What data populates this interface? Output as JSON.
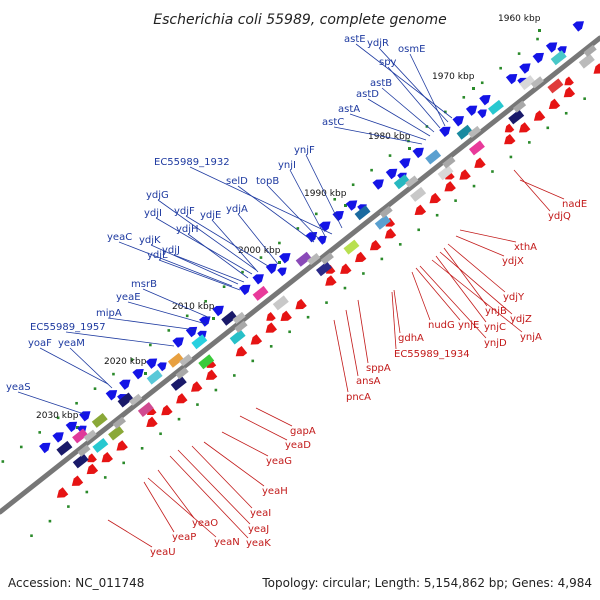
{
  "title": "Escherichia coli 55989, complete genome",
  "footer": {
    "accession": "Accession: NC_011748",
    "summary": "Topology: circular; Length: 5,154,862 bp; Genes: 4,984"
  },
  "colors": {
    "backbone": "#888888",
    "top_label": "#1e3aa0",
    "bottom_label": "#c21a1a",
    "top_feature": "#1414e6",
    "bottom_feature": "#e61414",
    "tick": "#2a8a2a"
  },
  "ticks": [
    "1960 kbp",
    "1970 kbp",
    "1980 kbp",
    "1990 kbp",
    "2000 kbp",
    "2010 kbp",
    "2020 kbp",
    "2030 kbp"
  ],
  "top_genes": [
    "astE",
    "ydjR",
    "osmE",
    "spy",
    "astB",
    "astD",
    "astA",
    "astC",
    "ynjF",
    "EC55989_1932",
    "ynjI",
    "selD",
    "topB",
    "ydjG",
    "ydjF",
    "ydjI",
    "ydjE",
    "ydjA",
    "ydjH",
    "yeaC",
    "ydjK",
    "ydjJ",
    "ydjL",
    "msrB",
    "yeaE",
    "mipA",
    "EC55989_1957",
    "yoaF",
    "yeaM",
    "yeaS"
  ],
  "bottom_genes": [
    "nadE",
    "ydjQ",
    "xthA",
    "ydjX",
    "ydjY",
    "ynjB",
    "ydjZ",
    "ynjC",
    "ynjA",
    "nudG",
    "ynjE",
    "ynjD",
    "gdhA",
    "EC55989_1934",
    "sppA",
    "ansA",
    "pncA",
    "gapA",
    "yeaD",
    "yeaG",
    "yeaH",
    "yeaI",
    "yeaJ",
    "yeaK",
    "yeaO",
    "yeaN",
    "yeaP",
    "yeaU"
  ]
}
